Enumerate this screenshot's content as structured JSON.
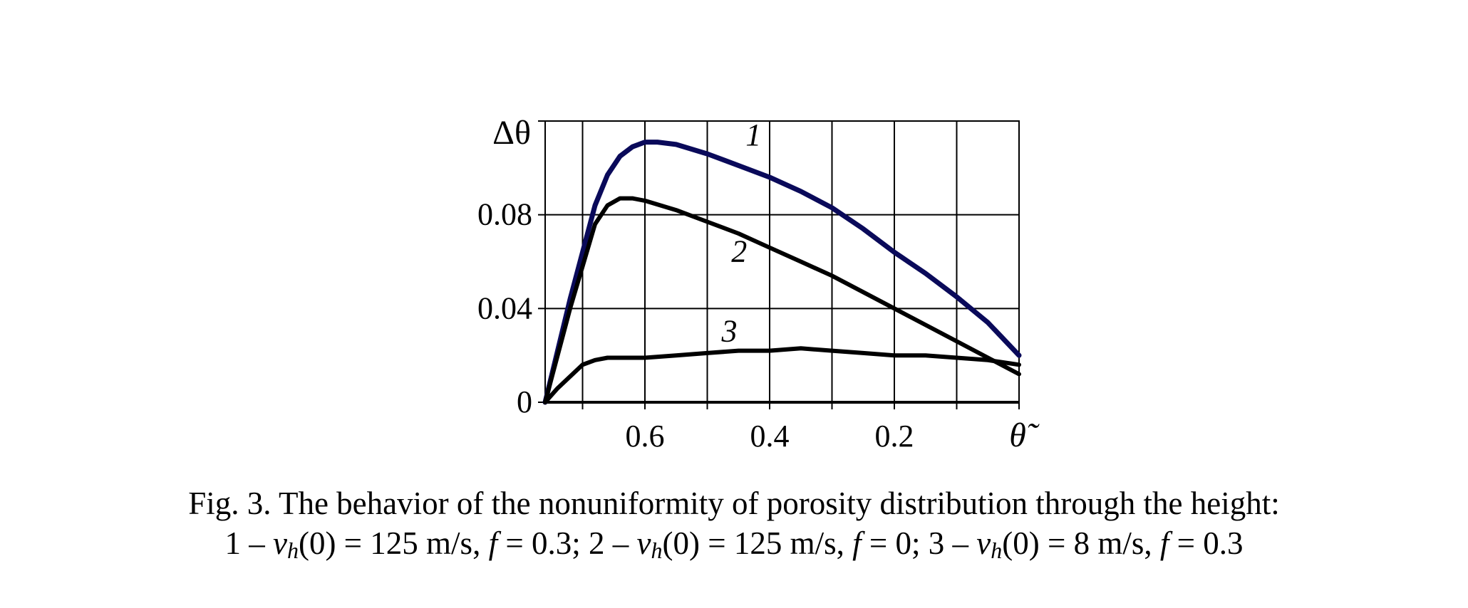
{
  "chart_data": {
    "type": "line",
    "ylabel": "Δθ",
    "xlabel": "θ̃",
    "xlim": [
      0.76,
      0.0
    ],
    "ylim": [
      0,
      0.12
    ],
    "x_reversed": true,
    "grid": true,
    "x_ticks": [
      0.7,
      0.6,
      0.5,
      0.4,
      0.3,
      0.2,
      0.1,
      0.0
    ],
    "x_tick_labels": [
      "0.6",
      "0.4",
      "0.2"
    ],
    "x_tick_label_values": [
      0.6,
      0.4,
      0.2
    ],
    "y_ticks": [
      0,
      0.04,
      0.08,
      0.12
    ],
    "y_tick_labels": [
      "0",
      "0.04",
      "0.08"
    ],
    "y_tick_label_values": [
      0,
      0.04,
      0.08
    ],
    "series": [
      {
        "name": "1",
        "color": "#0a0a5a",
        "x": [
          0.76,
          0.74,
          0.72,
          0.7,
          0.68,
          0.66,
          0.64,
          0.62,
          0.6,
          0.58,
          0.55,
          0.5,
          0.45,
          0.4,
          0.35,
          0.3,
          0.25,
          0.2,
          0.15,
          0.1,
          0.05,
          0.0
        ],
        "y": [
          0.0,
          0.022,
          0.044,
          0.064,
          0.084,
          0.097,
          0.105,
          0.109,
          0.111,
          0.111,
          0.11,
          0.106,
          0.101,
          0.096,
          0.09,
          0.083,
          0.074,
          0.064,
          0.055,
          0.045,
          0.034,
          0.02
        ]
      },
      {
        "name": "2",
        "color": "#000000",
        "x": [
          0.76,
          0.74,
          0.72,
          0.7,
          0.68,
          0.66,
          0.64,
          0.62,
          0.6,
          0.55,
          0.5,
          0.45,
          0.4,
          0.35,
          0.3,
          0.25,
          0.2,
          0.15,
          0.1,
          0.05,
          0.0
        ],
        "y": [
          0.0,
          0.02,
          0.04,
          0.058,
          0.076,
          0.084,
          0.087,
          0.087,
          0.086,
          0.082,
          0.077,
          0.072,
          0.066,
          0.06,
          0.054,
          0.047,
          0.04,
          0.033,
          0.026,
          0.019,
          0.012
        ]
      },
      {
        "name": "3",
        "color": "#000000",
        "x": [
          0.76,
          0.74,
          0.72,
          0.7,
          0.68,
          0.66,
          0.64,
          0.6,
          0.55,
          0.5,
          0.45,
          0.4,
          0.35,
          0.3,
          0.25,
          0.2,
          0.15,
          0.1,
          0.05,
          0.0
        ],
        "y": [
          0.0,
          0.006,
          0.011,
          0.016,
          0.018,
          0.019,
          0.019,
          0.019,
          0.02,
          0.021,
          0.022,
          0.022,
          0.023,
          0.022,
          0.021,
          0.02,
          0.02,
          0.019,
          0.018,
          0.016
        ]
      }
    ]
  },
  "caption": {
    "line1": "Fig. 3. The behavior of the nonuniformity of porosity distribution through the height:",
    "line2": {
      "p1": "1 – ",
      "v1": "v",
      "sub1": "h",
      "p2": "(0) = 125 m/s, ",
      "f1": "f",
      "p3": " = 0.3; 2 – ",
      "v2": "v",
      "sub2": "h",
      "p4": "(0) = 125 m/s, ",
      "f2": "f",
      "p5": " = 0; 3 – ",
      "v3": "v",
      "sub3": "h",
      "p6": "(0) = 8 m/s, ",
      "f3": "f",
      "p7": " = 0.3"
    }
  }
}
